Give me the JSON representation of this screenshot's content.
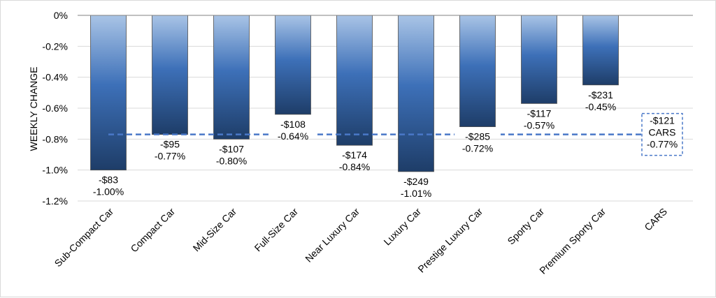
{
  "chart_data": {
    "type": "bar",
    "ylabel": "WEEKLY CHANGE",
    "xlabel": "",
    "title": "",
    "ylim": [
      -1.2,
      0
    ],
    "ytick_values": [
      0,
      -0.2,
      -0.4,
      -0.6,
      -0.8,
      -1.0,
      -1.2
    ],
    "ytick_labels": [
      "0%",
      "-0.2%",
      "-0.4%",
      "-0.6%",
      "-0.8%",
      "-1.0%",
      "-1.2%"
    ],
    "grid": true,
    "categories": [
      "Sub-Compact Car",
      "Compact Car",
      "Mid-Size Car",
      "Full-Size Car",
      "Near Luxury Car",
      "Luxury Car",
      "Prestige Luxury Car",
      "Sporty Car",
      "Premium Sporty Car",
      "CARS"
    ],
    "values": [
      -1.0,
      -0.77,
      -0.8,
      -0.64,
      -0.84,
      -1.01,
      -0.72,
      -0.57,
      -0.45,
      null
    ],
    "dollar_labels": [
      "-$83",
      "-$95",
      "-$107",
      "-$108",
      "-$174",
      "-$249",
      "-$285",
      "-$117",
      "-$231",
      "-$121"
    ],
    "pct_labels": [
      "-1.00%",
      "-0.77%",
      "-0.80%",
      "-0.64%",
      "-0.84%",
      "-1.01%",
      "-0.72%",
      "-0.57%",
      "-0.45%",
      "-0.77%"
    ],
    "reference_line": {
      "value": -0.77,
      "label_lines": [
        "-$121",
        "CARS",
        "-0.77%"
      ],
      "style": "dashed"
    },
    "colors": {
      "bar_top": "#a9c4e6",
      "bar_mid": "#3d70b8",
      "bar_bottom": "#1e3d68",
      "bar_stroke": "#505050",
      "reference_line": "#4a78c8",
      "gridline": "#d9d9d9",
      "axis": "#808080"
    }
  }
}
